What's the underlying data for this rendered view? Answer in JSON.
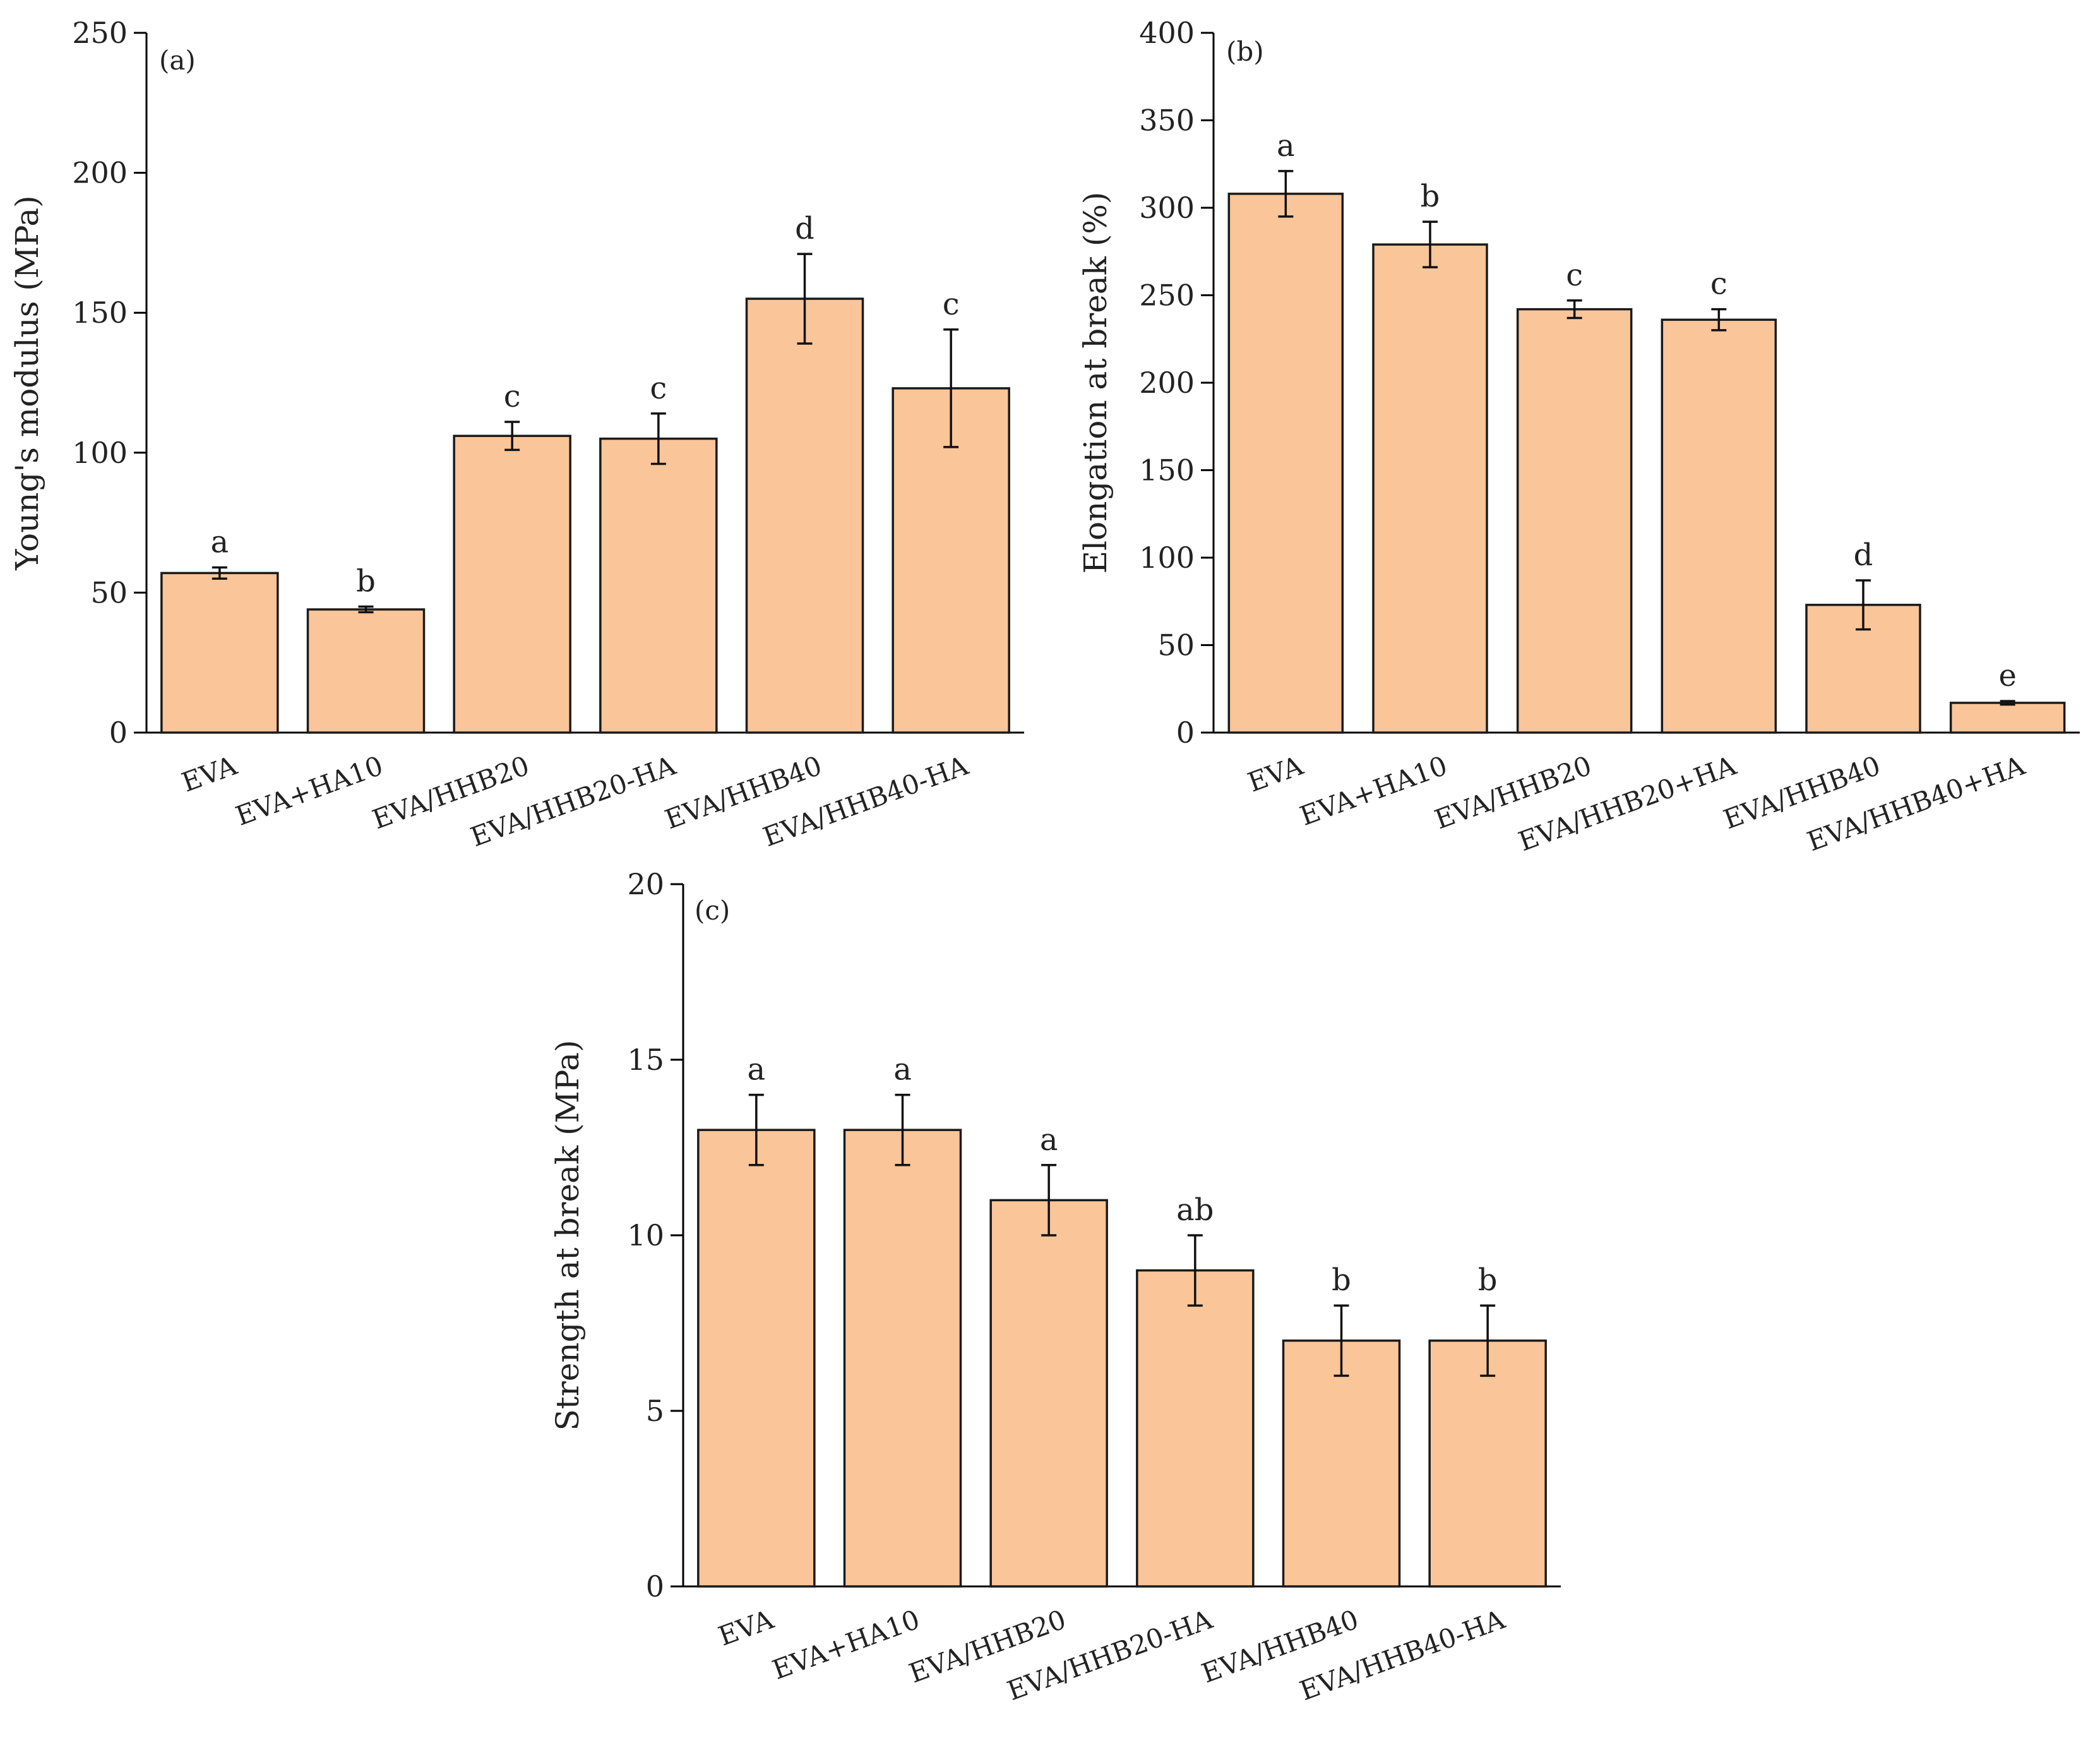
{
  "chart_data": [
    {
      "type": "bar",
      "panel_label": "(a)",
      "ylabel": "Young's modulus (MPa)",
      "ylim": [
        0,
        250
      ],
      "yticks": [
        "0",
        "50",
        "100",
        "150",
        "200",
        "250"
      ],
      "categories": [
        "EVA",
        "EVA+HA10",
        "EVA/HHB20",
        "EVA/HHB20-HA",
        "EVA/HHB40",
        "EVA/HHB40-HA"
      ],
      "values": [
        57,
        44,
        106,
        105,
        155,
        123
      ],
      "errors": [
        2,
        1,
        5,
        9,
        16,
        21
      ],
      "significance_letters": [
        "a",
        "b",
        "c",
        "c",
        "d",
        "c"
      ]
    },
    {
      "type": "bar",
      "panel_label": "(b)",
      "ylabel": "Elongation at break (%)",
      "ylim": [
        0,
        400
      ],
      "yticks": [
        "0",
        "50",
        "100",
        "150",
        "200",
        "250",
        "300",
        "350",
        "400"
      ],
      "categories": [
        "EVA",
        "EVA+HA10",
        "EVA/HHB20",
        "EVA/HHB20+HA",
        "EVA/HHB40",
        "EVA/HHB40+HA"
      ],
      "values": [
        308,
        279,
        242,
        236,
        73,
        17
      ],
      "errors": [
        13,
        13,
        5,
        6,
        14,
        1
      ],
      "significance_letters": [
        "a",
        "b",
        "c",
        "c",
        "d",
        "e"
      ]
    },
    {
      "type": "bar",
      "panel_label": "(c)",
      "ylabel": "Strength at break (MPa)",
      "ylim": [
        0,
        20
      ],
      "yticks": [
        "0",
        "5",
        "10",
        "15",
        "20"
      ],
      "categories": [
        "EVA",
        "EVA+HA10",
        "EVA/HHB20",
        "EVA/HHB20-HA",
        "EVA/HHB40",
        "EVA/HHB40-HA"
      ],
      "values": [
        13,
        13,
        11,
        9,
        7,
        7
      ],
      "errors": [
        1,
        1,
        1,
        1,
        1,
        1
      ],
      "significance_letters": [
        "a",
        "a",
        "a",
        "ab",
        "b",
        "b"
      ]
    }
  ],
  "colors": {
    "bar_fill": "#fac598",
    "bar_stroke": "#1a1a1a"
  }
}
